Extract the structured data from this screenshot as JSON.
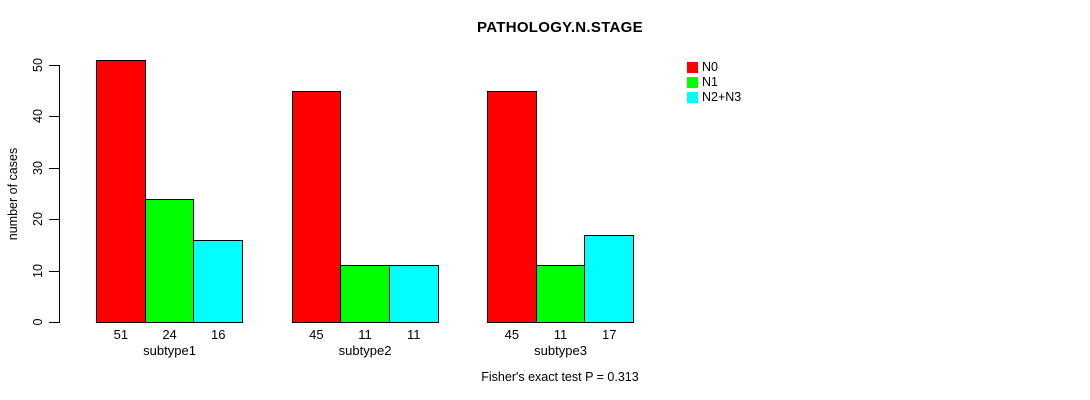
{
  "title": "PATHOLOGY.N.STAGE",
  "footer": "Fisher's exact test P = 0.313",
  "chart_data": {
    "type": "bar",
    "title": "PATHOLOGY.N.STAGE",
    "xlabel": "",
    "ylabel": "number of cases",
    "categories": [
      "subtype1",
      "subtype2",
      "subtype3"
    ],
    "series": [
      {
        "name": "N0",
        "color": "#FF0000",
        "values": [
          51,
          45,
          45
        ]
      },
      {
        "name": "N1",
        "color": "#00FF00",
        "values": [
          24,
          11,
          11
        ]
      },
      {
        "name": "N2+N3",
        "color": "#00FFFF",
        "values": [
          16,
          11,
          17
        ]
      }
    ],
    "ylim": [
      0,
      50
    ],
    "yticks": [
      0,
      10,
      20,
      30,
      40,
      50
    ],
    "grid": false,
    "legend_position": "top-right",
    "bar_value_labels_shown": true,
    "annotation": "Fisher's exact test P = 0.313"
  }
}
